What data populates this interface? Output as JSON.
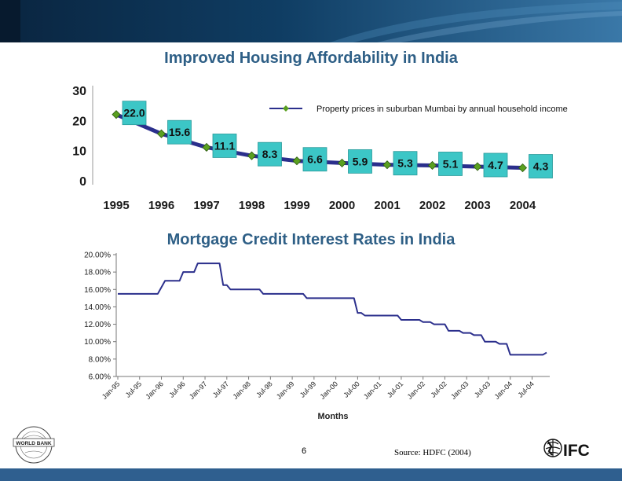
{
  "slide": {
    "title1": "Improved Housing Affordability in India",
    "title2": "Mortgage Credit Interest Rates in India",
    "page_number": "6",
    "source": "Source: HDFC (2004)",
    "logos": {
      "left": "WORLD BANK",
      "right": "IFC"
    },
    "colors": {
      "title": "#2e5f86",
      "header_dark": "#0a2540",
      "header_blue": "#1e5f86",
      "footer": "#2f5f8f"
    }
  },
  "chart_data": [
    {
      "type": "line",
      "title": "",
      "legend": {
        "label": "Property prices in suburban Mumbai by annual household income",
        "placement": "top-right"
      },
      "x": [
        "1995",
        "1996",
        "1997",
        "1998",
        "1999",
        "2000",
        "2001",
        "2002",
        "2003",
        "2004"
      ],
      "series": [
        {
          "name": "Property prices in suburban Mumbai by annual household income",
          "values": [
            22.0,
            15.6,
            11.1,
            8.3,
            6.6,
            5.9,
            5.3,
            5.1,
            4.7,
            4.3
          ]
        }
      ],
      "data_labels": [
        "22.0",
        "15.6",
        "11.1",
        "8.3",
        "6.6",
        "5.9",
        "5.3",
        "5.1",
        "4.7",
        "4.3"
      ],
      "y_ticks": [
        "0",
        "10",
        "20",
        "30"
      ],
      "ylim": [
        0,
        30
      ],
      "grid": false,
      "colors": {
        "line": "#2b2f8c",
        "marker": "#5aa020",
        "label_box": "#3cc6c6"
      }
    },
    {
      "type": "line",
      "title": "",
      "xlabel": "Months",
      "ylabel": "",
      "x_ticks": [
        "Jan-95",
        "Jul-95",
        "Jan-96",
        "Jul-96",
        "Jan-97",
        "Jul-97",
        "Jan-98",
        "Jul-98",
        "Jan-99",
        "Jul-99",
        "Jan-00",
        "Jul-00",
        "Jan-01",
        "Jul-01",
        "Jan-02",
        "Jul-02",
        "Jan-03",
        "Jul-03",
        "Jan-04",
        "Jul-04"
      ],
      "y_ticks": [
        "6.00%",
        "8.00%",
        "10.00%",
        "12.00%",
        "14.00%",
        "16.00%",
        "18.00%",
        "20.00%"
      ],
      "ylim": [
        6,
        20
      ],
      "grid": false,
      "series": [
        {
          "name": "",
          "points": [
            [
              "Jan-95",
              15.5
            ],
            [
              "Jun-95",
              15.5
            ],
            [
              "Jul-95",
              15.5
            ],
            [
              "Dec-95",
              15.5
            ],
            [
              "Feb-96",
              17.0
            ],
            [
              "Jun-96",
              17.0
            ],
            [
              "Jul-96",
              18.0
            ],
            [
              "Oct-96",
              18.0
            ],
            [
              "Nov-96",
              19.0
            ],
            [
              "May-97",
              19.0
            ],
            [
              "Jun-97",
              16.5
            ],
            [
              "Jul-97",
              16.5
            ],
            [
              "Aug-97",
              16.0
            ],
            [
              "Jan-98",
              16.0
            ],
            [
              "Apr-98",
              16.0
            ],
            [
              "May-98",
              15.5
            ],
            [
              "Dec-98",
              15.5
            ],
            [
              "Jan-99",
              15.5
            ],
            [
              "Apr-99",
              15.5
            ],
            [
              "May-99",
              15.0
            ],
            [
              "Apr-00",
              15.0
            ],
            [
              "Jun-00",
              15.0
            ],
            [
              "Jul-00",
              13.3
            ],
            [
              "Aug-00",
              13.3
            ],
            [
              "Sep-00",
              13.0
            ],
            [
              "Jan-01",
              13.0
            ],
            [
              "Jun-01",
              13.0
            ],
            [
              "Jul-01",
              12.5
            ],
            [
              "Dec-01",
              12.5
            ],
            [
              "Jan-02",
              12.25
            ],
            [
              "Mar-02",
              12.25
            ],
            [
              "Apr-02",
              12.0
            ],
            [
              "Jul-02",
              12.0
            ],
            [
              "Aug-02",
              11.25
            ],
            [
              "Nov-02",
              11.25
            ],
            [
              "Dec-02",
              11.0
            ],
            [
              "Feb-03",
              11.0
            ],
            [
              "Mar-03",
              10.75
            ],
            [
              "May-03",
              10.75
            ],
            [
              "Jun-03",
              10.0
            ],
            [
              "Sep-03",
              10.0
            ],
            [
              "Oct-03",
              9.75
            ],
            [
              "Dec-03",
              9.75
            ],
            [
              "Jan-04",
              8.5
            ],
            [
              "Oct-04",
              8.5
            ],
            [
              "Nov-04",
              8.75
            ]
          ]
        }
      ],
      "colors": {
        "line": "#2b2f8c"
      }
    }
  ]
}
